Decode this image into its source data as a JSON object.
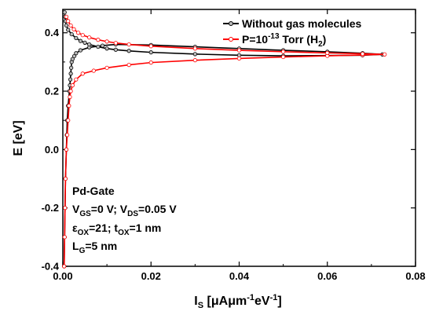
{
  "chart_data": {
    "type": "line",
    "xlabel": {
      "main": "I",
      "sub": "S",
      "rest": " [μAμm",
      "sup1": "-1",
      "mid": "eV",
      "sup2": "-1",
      "end": "]"
    },
    "ylabel": "E [eV]",
    "xlim": [
      0.0,
      0.08
    ],
    "ylim": [
      -0.4,
      0.48
    ],
    "x_ticks": [
      0.0,
      0.02,
      0.04,
      0.06,
      0.08
    ],
    "x_tick_labels": [
      "0.00",
      "0.02",
      "0.04",
      "0.06",
      "0.08"
    ],
    "y_ticks": [
      -0.4,
      -0.2,
      0.0,
      0.2,
      0.4
    ],
    "y_tick_labels": [
      "-0.4",
      "-0.2",
      "0.0",
      "0.2",
      "0.4"
    ],
    "legend_position": "top-right",
    "series": [
      {
        "name": "Without gas molecules",
        "color": "#000000",
        "marker_fill": "#bbbbbb",
        "points": [
          [
            0.0003,
            -0.4
          ],
          [
            0.0004,
            -0.3
          ],
          [
            0.0005,
            -0.2
          ],
          [
            0.0006,
            -0.1
          ],
          [
            0.0008,
            0.0
          ],
          [
            0.0009,
            0.05
          ],
          [
            0.001,
            0.1
          ],
          [
            0.0012,
            0.15
          ],
          [
            0.0015,
            0.2
          ],
          [
            0.0016,
            0.22
          ],
          [
            0.0017,
            0.24
          ],
          [
            0.0018,
            0.26
          ],
          [
            0.0019,
            0.28
          ],
          [
            0.002,
            0.3
          ],
          [
            0.0022,
            0.31
          ],
          [
            0.0026,
            0.32
          ],
          [
            0.003,
            0.33
          ],
          [
            0.004,
            0.34
          ],
          [
            0.006,
            0.35
          ],
          [
            0.009,
            0.356
          ],
          [
            0.012,
            0.36
          ],
          [
            0.02,
            0.358
          ],
          [
            0.03,
            0.352
          ],
          [
            0.04,
            0.346
          ],
          [
            0.05,
            0.34
          ],
          [
            0.06,
            0.335
          ],
          [
            0.068,
            0.33
          ],
          [
            0.0725,
            0.326
          ],
          [
            0.068,
            0.323
          ],
          [
            0.06,
            0.322
          ],
          [
            0.05,
            0.321
          ],
          [
            0.04,
            0.323
          ],
          [
            0.03,
            0.327
          ],
          [
            0.02,
            0.333
          ],
          [
            0.015,
            0.338
          ],
          [
            0.012,
            0.342
          ],
          [
            0.01,
            0.346
          ],
          [
            0.008,
            0.352
          ],
          [
            0.006,
            0.36
          ],
          [
            0.005,
            0.366
          ],
          [
            0.004,
            0.372
          ],
          [
            0.003,
            0.382
          ],
          [
            0.002,
            0.395
          ],
          [
            0.0012,
            0.41
          ],
          [
            0.0008,
            0.425
          ],
          [
            0.0006,
            0.44
          ],
          [
            0.0005,
            0.455
          ],
          [
            0.0004,
            0.47
          ]
        ]
      },
      {
        "name": "P=10-13 Torr (H2)",
        "legend_parts": {
          "base": "P=10",
          "sup": "-13",
          "mid": " Torr (H",
          "sub": "2",
          "end": ")"
        },
        "color": "#ff0000",
        "marker_fill": "#ffffff",
        "points": [
          [
            0.0003,
            -0.4
          ],
          [
            0.0004,
            -0.3
          ],
          [
            0.0005,
            -0.2
          ],
          [
            0.0006,
            -0.1
          ],
          [
            0.0008,
            0.0
          ],
          [
            0.001,
            0.05
          ],
          [
            0.0012,
            0.1
          ],
          [
            0.0014,
            0.15
          ],
          [
            0.0016,
            0.18
          ],
          [
            0.0018,
            0.2
          ],
          [
            0.0022,
            0.22
          ],
          [
            0.003,
            0.24
          ],
          [
            0.0045,
            0.26
          ],
          [
            0.007,
            0.27
          ],
          [
            0.01,
            0.28
          ],
          [
            0.015,
            0.29
          ],
          [
            0.02,
            0.298
          ],
          [
            0.03,
            0.306
          ],
          [
            0.04,
            0.312
          ],
          [
            0.05,
            0.317
          ],
          [
            0.06,
            0.321
          ],
          [
            0.068,
            0.324
          ],
          [
            0.073,
            0.326
          ],
          [
            0.068,
            0.328
          ],
          [
            0.06,
            0.331
          ],
          [
            0.05,
            0.335
          ],
          [
            0.04,
            0.34
          ],
          [
            0.03,
            0.346
          ],
          [
            0.02,
            0.354
          ],
          [
            0.015,
            0.36
          ],
          [
            0.012,
            0.365
          ],
          [
            0.01,
            0.37
          ],
          [
            0.008,
            0.376
          ],
          [
            0.006,
            0.384
          ],
          [
            0.0045,
            0.392
          ],
          [
            0.0035,
            0.4
          ],
          [
            0.0025,
            0.412
          ],
          [
            0.0018,
            0.425
          ],
          [
            0.0012,
            0.44
          ],
          [
            0.0008,
            0.455
          ]
        ]
      }
    ],
    "annotation_lines": [
      {
        "id": "gate",
        "parts": [
          {
            "t": "Pd-Gate"
          }
        ]
      },
      {
        "id": "bias",
        "parts": [
          {
            "t": "V"
          },
          {
            "t": "GS",
            "sub": true
          },
          {
            "t": "=0 V; V"
          },
          {
            "t": "DS",
            "sub": true
          },
          {
            "t": "=0.05 V"
          }
        ]
      },
      {
        "id": "oxide",
        "parts": [
          {
            "t": "ε"
          },
          {
            "t": "OX",
            "sub": true
          },
          {
            "t": "=21; t"
          },
          {
            "t": "OX",
            "sub": true
          },
          {
            "t": "=1 nm"
          }
        ]
      },
      {
        "id": "length",
        "parts": [
          {
            "t": "L"
          },
          {
            "t": "G",
            "sub": true
          },
          {
            "t": "=5 nm"
          }
        ]
      }
    ]
  }
}
